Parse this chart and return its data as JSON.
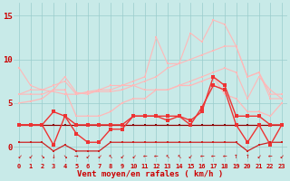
{
  "x": [
    0,
    1,
    2,
    3,
    4,
    5,
    6,
    7,
    8,
    9,
    10,
    11,
    12,
    13,
    14,
    15,
    16,
    17,
    18,
    19,
    20,
    21,
    22,
    23
  ],
  "background_color": "#c8eae8",
  "grid_color": "#99cccc",
  "xlabel": "Vent moyen/en rafales ( km/h )",
  "ylim": [
    -1.8,
    16.5
  ],
  "xlim": [
    -0.5,
    23.5
  ],
  "yticks": [
    0,
    5,
    10,
    15
  ],
  "lines": [
    {
      "y": [
        9.0,
        7.0,
        6.5,
        6.3,
        6.0,
        6.0,
        6.3,
        6.5,
        7.0,
        7.0,
        7.5,
        8.0,
        12.5,
        9.5,
        9.5,
        13.0,
        12.0,
        14.5,
        14.0,
        11.5,
        8.0,
        8.5,
        5.5,
        5.5
      ],
      "color": "#ffb8b8",
      "lw": 0.8,
      "marker": "s",
      "ms": 1.8,
      "zorder": 2
    },
    {
      "y": [
        6.0,
        6.0,
        6.0,
        6.5,
        8.0,
        6.2,
        6.0,
        6.5,
        6.5,
        7.0,
        7.0,
        7.5,
        8.0,
        9.0,
        9.5,
        10.0,
        10.5,
        11.0,
        11.5,
        11.5,
        8.0,
        8.5,
        6.0,
        6.0
      ],
      "color": "#ffb8b8",
      "lw": 0.8,
      "marker": "s",
      "ms": 1.8,
      "zorder": 2
    },
    {
      "y": [
        6.0,
        6.5,
        6.5,
        7.0,
        7.5,
        6.0,
        6.2,
        6.3,
        6.3,
        6.5,
        7.0,
        6.5,
        6.5,
        6.5,
        7.0,
        7.5,
        8.0,
        8.5,
        9.0,
        8.5,
        5.5,
        8.0,
        6.5,
        5.5
      ],
      "color": "#ffb8b8",
      "lw": 0.8,
      "marker": "s",
      "ms": 1.8,
      "zorder": 2
    },
    {
      "y": [
        5.0,
        5.2,
        5.5,
        6.5,
        6.5,
        3.5,
        3.5,
        3.5,
        4.0,
        5.0,
        5.5,
        5.5,
        6.5,
        6.5,
        7.0,
        7.0,
        7.5,
        8.0,
        6.0,
        5.5,
        4.0,
        4.0,
        3.5,
        5.0
      ],
      "color": "#ffb8b8",
      "lw": 0.9,
      "marker": "s",
      "ms": 1.8,
      "zorder": 2
    },
    {
      "y": [
        2.5,
        2.5,
        2.5,
        4.0,
        3.5,
        2.5,
        2.5,
        2.5,
        2.5,
        2.5,
        3.5,
        3.5,
        3.5,
        3.5,
        3.5,
        3.0,
        4.0,
        8.0,
        7.0,
        3.5,
        3.5,
        3.5,
        2.5,
        2.5
      ],
      "color": "#ee3333",
      "lw": 1.0,
      "marker": "s",
      "ms": 2.2,
      "zorder": 4
    },
    {
      "y": [
        2.5,
        2.5,
        2.5,
        0.2,
        3.5,
        1.5,
        0.5,
        0.5,
        2.0,
        2.0,
        3.5,
        3.5,
        3.5,
        3.0,
        3.5,
        2.5,
        4.5,
        7.0,
        6.5,
        2.5,
        0.5,
        2.5,
        0.2,
        2.5
      ],
      "color": "#ee3333",
      "lw": 1.0,
      "marker": "s",
      "ms": 2.2,
      "zorder": 4
    },
    {
      "y": [
        2.5,
        2.5,
        2.5,
        2.5,
        2.5,
        2.5,
        2.5,
        2.5,
        2.5,
        2.5,
        2.5,
        2.5,
        2.5,
        2.5,
        2.5,
        2.5,
        2.5,
        2.5,
        2.5,
        2.5,
        2.5,
        2.5,
        2.5,
        2.5
      ],
      "color": "#cc1111",
      "lw": 0.9,
      "marker": "s",
      "ms": 1.8,
      "zorder": 3
    },
    {
      "y": [
        2.5,
        2.5,
        2.5,
        2.5,
        2.5,
        2.5,
        2.5,
        2.5,
        2.5,
        2.5,
        2.5,
        2.5,
        2.5,
        2.5,
        2.5,
        2.5,
        2.5,
        2.5,
        2.5,
        2.5,
        2.5,
        2.5,
        2.5,
        2.5
      ],
      "color": "#880000",
      "lw": 0.7,
      "marker": "s",
      "ms": 1.5,
      "zorder": 3
    },
    {
      "y": [
        0.5,
        0.5,
        0.5,
        -0.5,
        0.2,
        -0.5,
        -0.5,
        -0.5,
        0.5,
        0.5,
        0.5,
        0.5,
        0.5,
        0.5,
        0.5,
        0.5,
        0.5,
        0.5,
        0.5,
        0.5,
        -0.5,
        0.2,
        0.5,
        0.5
      ],
      "color": "#cc2222",
      "lw": 0.9,
      "marker": "s",
      "ms": 1.8,
      "zorder": 3
    }
  ],
  "tick_color": "#cc0000",
  "label_color": "#cc0000",
  "wind_arrows": [
    "↙",
    "↙",
    "↘",
    "↓",
    "↘",
    "→",
    "↙",
    "↙",
    "↖",
    "↙",
    "↙",
    "←",
    "←",
    "↖",
    "↖",
    "↙",
    "←",
    "←",
    "←",
    "↑",
    "↑",
    "↙",
    "←",
    "↙"
  ],
  "arrow_fontsize": 5.5
}
